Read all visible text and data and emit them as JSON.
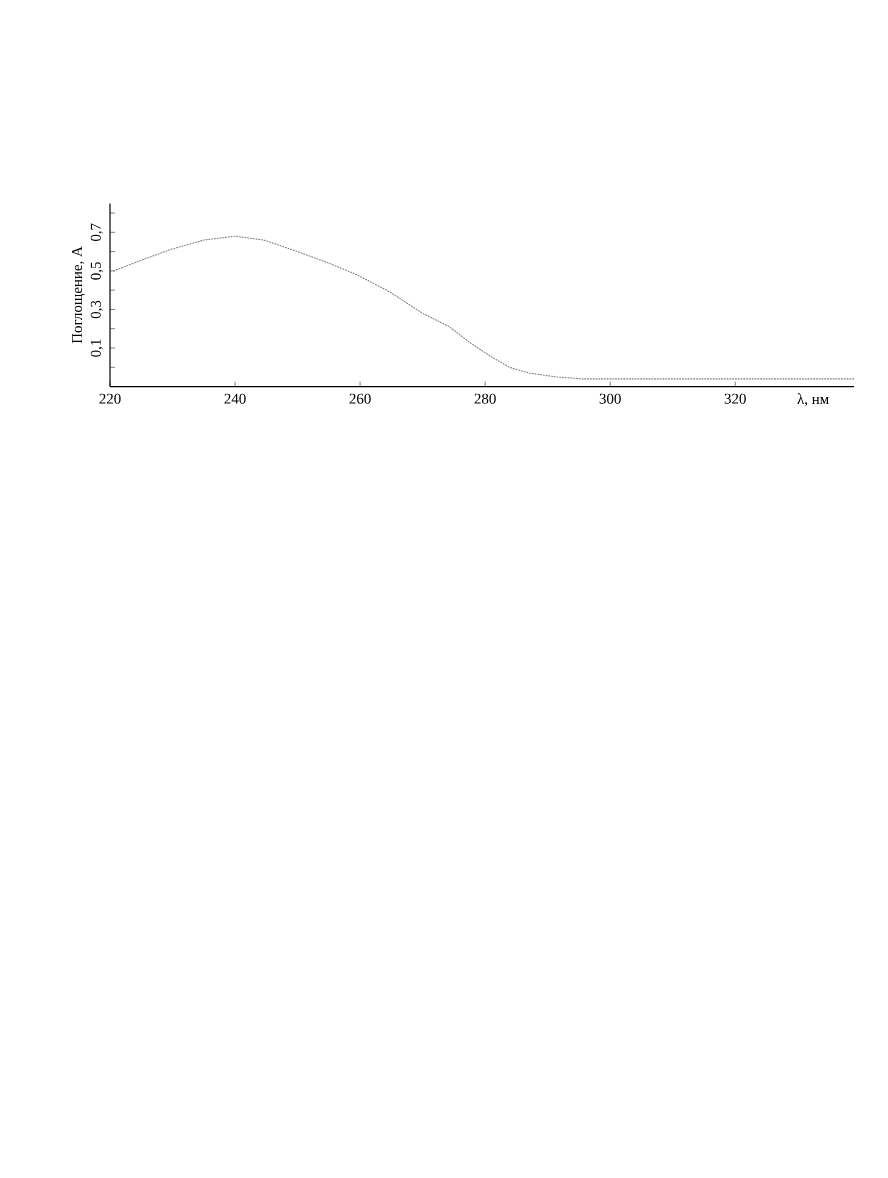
{
  "chart_data": {
    "type": "line",
    "xlabel": "λ, нм",
    "ylabel": "Поглощение, А",
    "x": [
      220.6,
      225.4,
      229.6,
      235,
      240,
      244.6,
      250,
      255,
      259.5,
      264.8,
      270,
      274.3,
      277.5,
      280.7,
      283.9,
      287.1,
      291.4,
      295.6,
      305,
      317,
      328,
      339
    ],
    "values": [
      0.5,
      0.56,
      0.61,
      0.66,
      0.68,
      0.66,
      0.6,
      0.54,
      0.48,
      0.39,
      0.28,
      0.21,
      0.13,
      0.06,
      0.0,
      -0.03,
      -0.05,
      -0.06,
      -0.06,
      -0.06,
      -0.06,
      -0.06
    ],
    "color": "#808080",
    "line_style": "dotted",
    "xlim": [
      220,
      339
    ],
    "xticks": [
      220,
      240,
      260,
      280,
      300,
      320
    ],
    "ylim": [
      -0.1,
      0.85
    ],
    "yticks": [
      {
        "value": 0,
        "label": null
      },
      {
        "value": 0.1,
        "label": "0,1"
      },
      {
        "value": 0.2,
        "label": null
      },
      {
        "value": 0.3,
        "label": "0,3"
      },
      {
        "value": 0.4,
        "label": null
      },
      {
        "value": 0.5,
        "label": "0,5"
      },
      {
        "value": 0.6,
        "label": null
      },
      {
        "value": 0.7,
        "label": "0,7"
      },
      {
        "value": 0.8,
        "label": null
      }
    ]
  }
}
